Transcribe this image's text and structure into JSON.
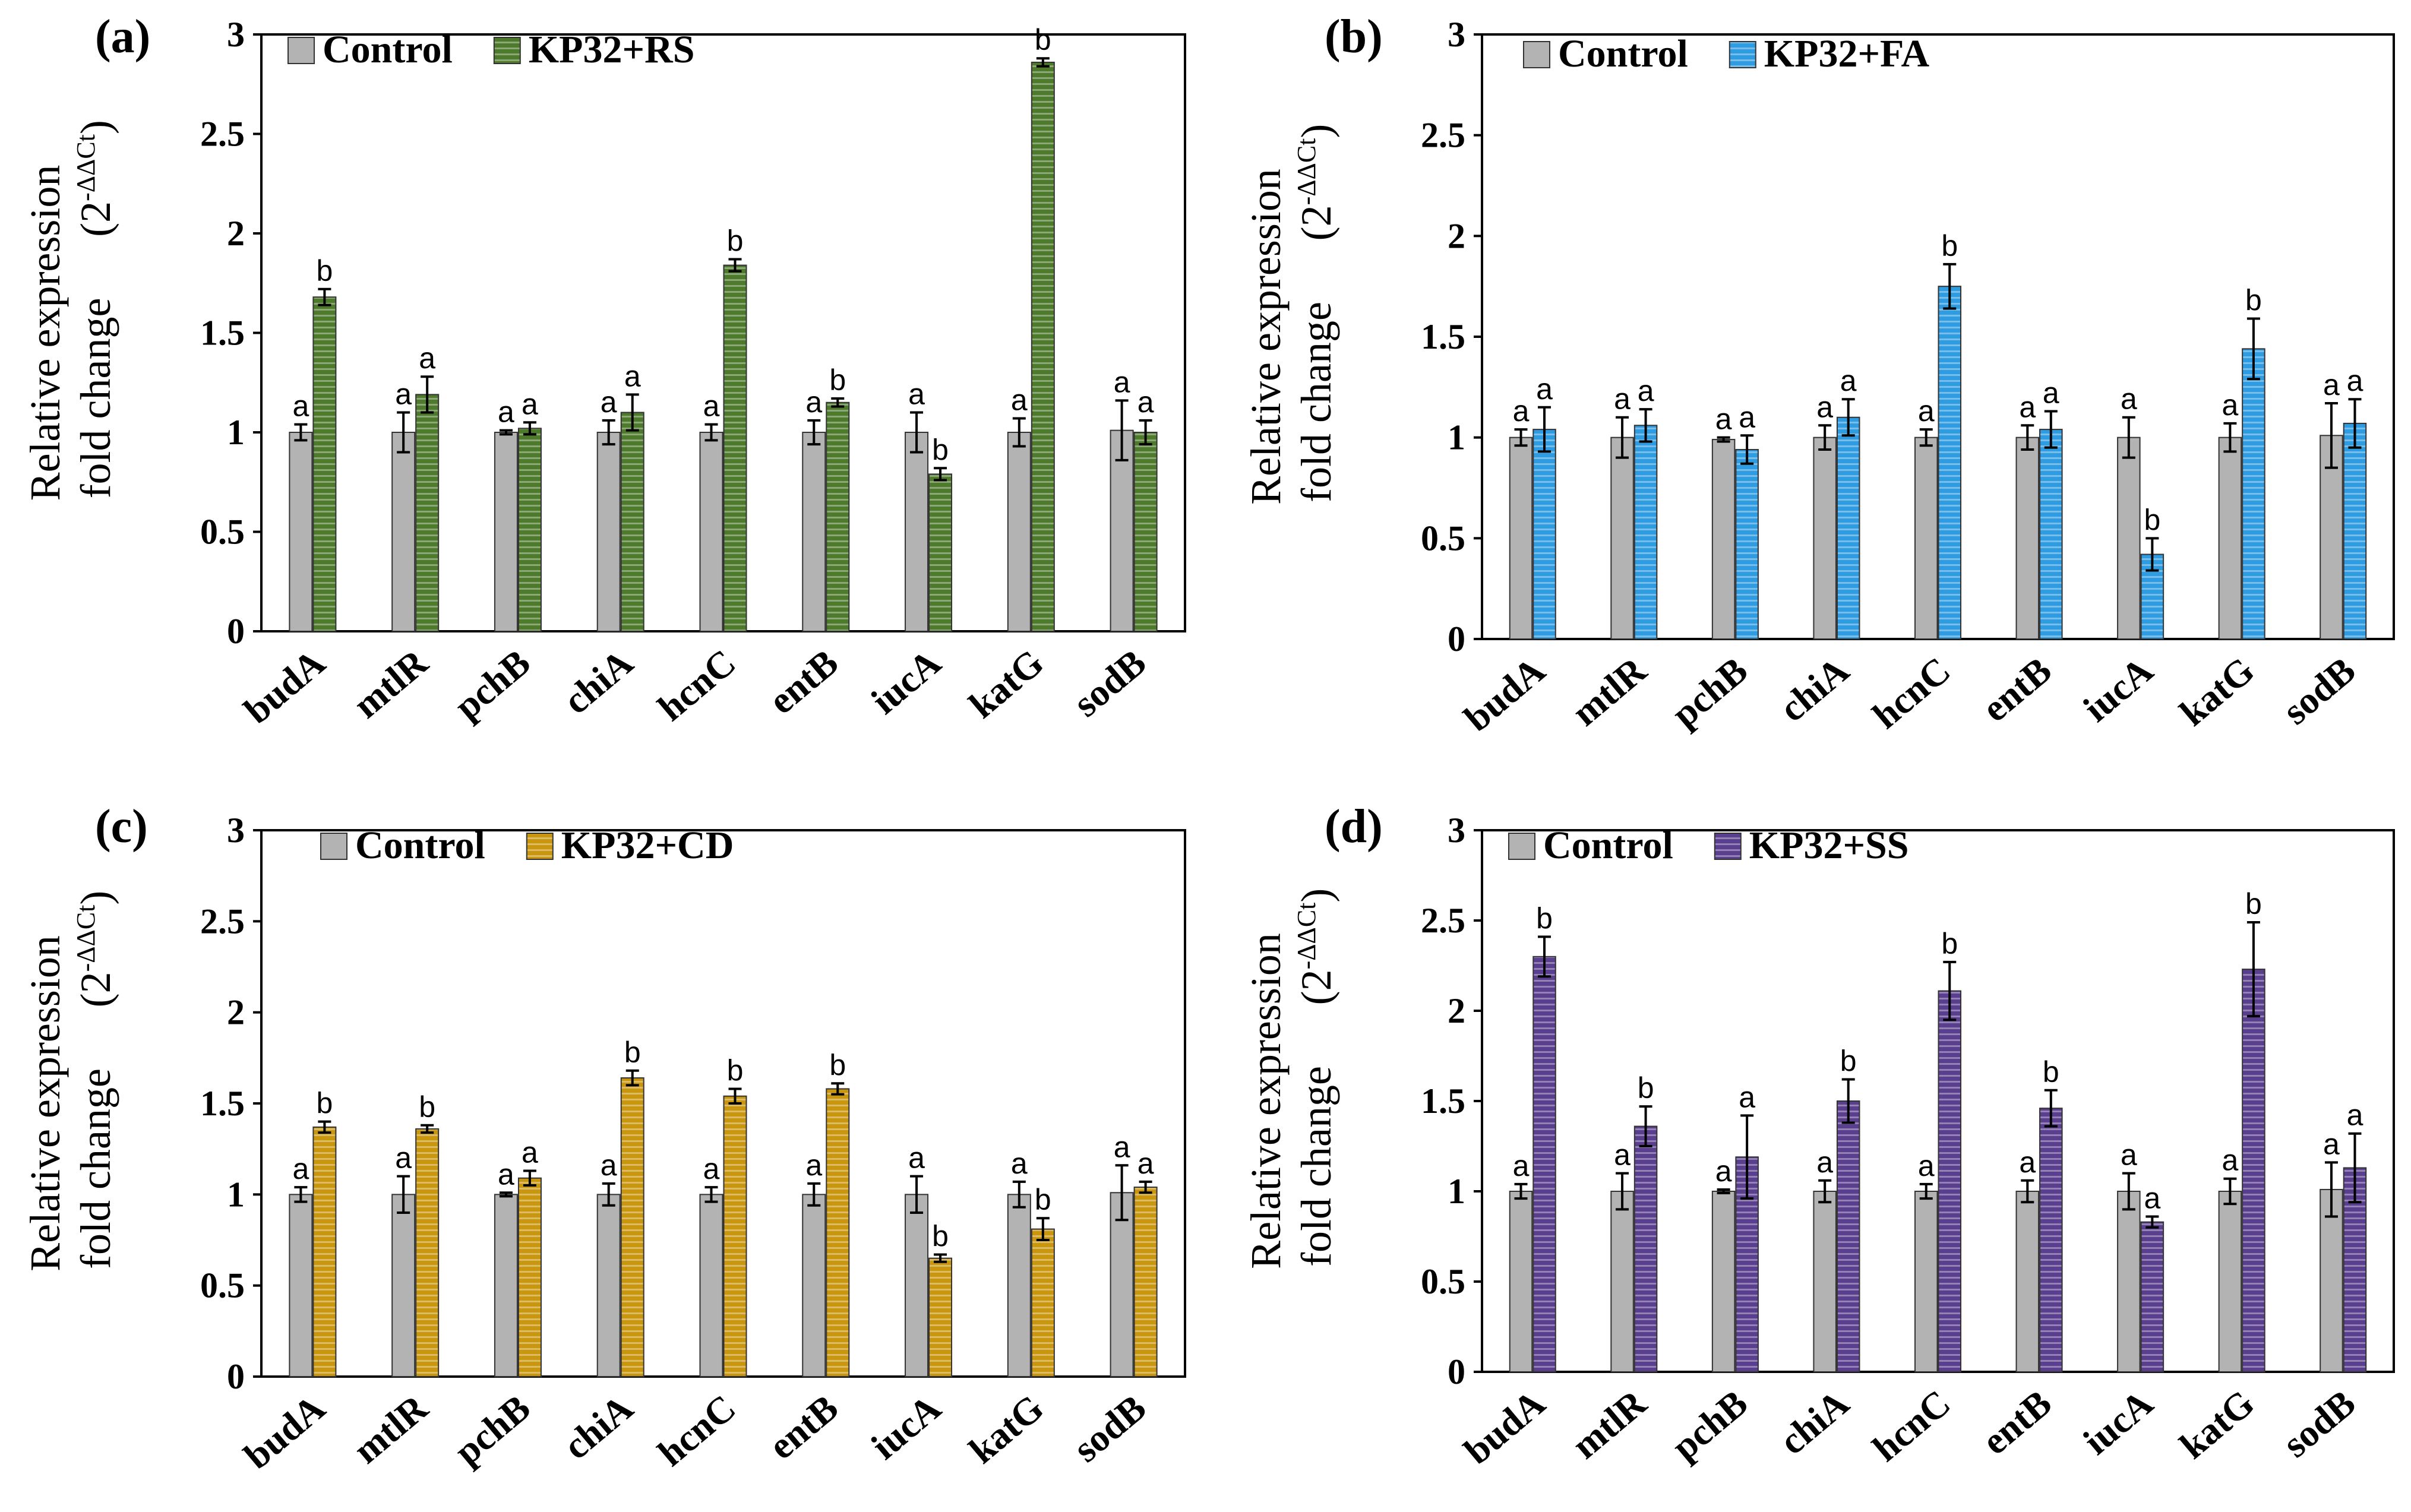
{
  "colors": {
    "control": "#b3b3b3",
    "rs": "#4e7a2c",
    "fa": "#2f9be0",
    "cd": "#c9960f",
    "ss": "#5a3f8f"
  },
  "chart_data": [
    {
      "type": "bar",
      "panel_label": "(a)",
      "categories": [
        "budA",
        "mtlR",
        "pchB",
        "chiA",
        "hcnC",
        "entB",
        "iucA",
        "katG",
        "sodB"
      ],
      "ylabel_line1": "Relative expression",
      "ylabel_line2": "fold change",
      "ylabel_unit_base": "(2",
      "ylabel_unit_sup": "-ΔΔCt",
      "ylabel_unit_close": ")",
      "ylim": [
        0,
        3
      ],
      "yticks": [
        "0",
        "0.5",
        "1",
        "1.5",
        "2",
        "2.5",
        "3"
      ],
      "legend_position": "top-left",
      "series": [
        {
          "name": "Control",
          "color_key": "control",
          "values": [
            1.0,
            1.0,
            1.0,
            1.0,
            1.0,
            1.0,
            1.0,
            1.0,
            1.01
          ],
          "errors": [
            0.04,
            0.1,
            0.01,
            0.06,
            0.04,
            0.06,
            0.1,
            0.07,
            0.15
          ],
          "labels": [
            "a",
            "a",
            "a",
            "a",
            "a",
            "a",
            "a",
            "a",
            "a"
          ]
        },
        {
          "name": "KP32+RS",
          "color_key": "rs",
          "values": [
            1.68,
            1.19,
            1.02,
            1.1,
            1.84,
            1.15,
            0.79,
            2.86,
            1.0
          ],
          "errors": [
            0.04,
            0.09,
            0.03,
            0.09,
            0.03,
            0.02,
            0.03,
            0.02,
            0.06
          ],
          "labels": [
            "b",
            "a",
            "a",
            "a",
            "b",
            "b",
            "b",
            "b",
            "a"
          ]
        }
      ]
    },
    {
      "type": "bar",
      "panel_label": "(b)",
      "categories": [
        "budA",
        "mtlR",
        "pchB",
        "chiA",
        "hcnC",
        "entB",
        "iucA",
        "katG",
        "sodB"
      ],
      "ylabel_line1": "Relative expression",
      "ylabel_line2": "fold change",
      "ylabel_unit_base": "(2",
      "ylabel_unit_sup": "-ΔΔCt",
      "ylabel_unit_close": ")",
      "ylim": [
        0,
        3
      ],
      "yticks": [
        "0",
        "0.5",
        "1",
        "1.5",
        "2",
        "2.5",
        "3"
      ],
      "legend_position": "top-left",
      "series": [
        {
          "name": "Control",
          "color_key": "control",
          "values": [
            1.0,
            1.0,
            0.99,
            1.0,
            1.0,
            1.0,
            1.0,
            1.0,
            1.01
          ],
          "errors": [
            0.04,
            0.1,
            0.01,
            0.06,
            0.04,
            0.06,
            0.1,
            0.07,
            0.16
          ],
          "labels": [
            "a",
            "a",
            "a",
            "a",
            "a",
            "a",
            "a",
            "a",
            "a"
          ]
        },
        {
          "name": "KP32+FA",
          "color_key": "fa",
          "values": [
            1.04,
            1.06,
            0.94,
            1.1,
            1.75,
            1.04,
            0.42,
            1.44,
            1.07
          ],
          "errors": [
            0.11,
            0.08,
            0.07,
            0.09,
            0.11,
            0.09,
            0.08,
            0.15,
            0.12
          ],
          "labels": [
            "a",
            "a",
            "a",
            "a",
            "b",
            "a",
            "b",
            "b",
            "a"
          ]
        }
      ]
    },
    {
      "type": "bar",
      "panel_label": "(c)",
      "categories": [
        "budA",
        "mtlR",
        "pchB",
        "chiA",
        "hcnC",
        "entB",
        "iucA",
        "katG",
        "sodB"
      ],
      "ylabel_line1": "Relative expression",
      "ylabel_line2": "fold change",
      "ylabel_unit_base": "(2",
      "ylabel_unit_sup": "-ΔΔCt",
      "ylabel_unit_close": ")",
      "ylim": [
        0,
        3
      ],
      "yticks": [
        "0",
        "0.5",
        "1",
        "1.5",
        "2",
        "2.5",
        "3"
      ],
      "legend_position": "top-left",
      "series": [
        {
          "name": "Control",
          "color_key": "control",
          "values": [
            1.0,
            1.0,
            1.0,
            1.0,
            1.0,
            1.0,
            1.0,
            1.0,
            1.01
          ],
          "errors": [
            0.04,
            0.1,
            0.01,
            0.06,
            0.04,
            0.06,
            0.1,
            0.07,
            0.15
          ],
          "labels": [
            "a",
            "a",
            "a",
            "a",
            "a",
            "a",
            "a",
            "a",
            "a"
          ]
        },
        {
          "name": "KP32+CD",
          "color_key": "cd",
          "values": [
            1.37,
            1.36,
            1.09,
            1.64,
            1.54,
            1.58,
            0.65,
            0.81,
            1.04
          ],
          "errors": [
            0.03,
            0.02,
            0.04,
            0.04,
            0.04,
            0.03,
            0.02,
            0.06,
            0.03
          ],
          "labels": [
            "b",
            "b",
            "a",
            "b",
            "b",
            "b",
            "b",
            "b",
            "a"
          ]
        }
      ]
    },
    {
      "type": "bar",
      "panel_label": "(d)",
      "categories": [
        "budA",
        "mtlR",
        "pchB",
        "chiA",
        "hcnC",
        "entB",
        "iucA",
        "katG",
        "sodB"
      ],
      "ylabel_line1": "Relative expression",
      "ylabel_line2": "fold change",
      "ylabel_unit_base": "(2",
      "ylabel_unit_sup": "-ΔΔCt",
      "ylabel_unit_close": ")",
      "ylim": [
        0,
        3
      ],
      "yticks": [
        "0",
        "0.5",
        "1",
        "1.5",
        "2",
        "2.5",
        "3"
      ],
      "legend_position": "top-left",
      "series": [
        {
          "name": "Control",
          "color_key": "control",
          "values": [
            1.0,
            1.0,
            1.0,
            1.0,
            1.0,
            1.0,
            1.0,
            1.0,
            1.01
          ],
          "errors": [
            0.04,
            0.1,
            0.01,
            0.06,
            0.04,
            0.06,
            0.1,
            0.07,
            0.15
          ],
          "labels": [
            "a",
            "a",
            "a",
            "a",
            "a",
            "a",
            "a",
            "a",
            "a"
          ]
        },
        {
          "name": "KP32+SS",
          "color_key": "ss",
          "values": [
            2.3,
            1.36,
            1.19,
            1.5,
            2.11,
            1.46,
            0.83,
            2.23,
            1.13
          ],
          "errors": [
            0.11,
            0.11,
            0.23,
            0.12,
            0.16,
            0.1,
            0.03,
            0.26,
            0.19
          ],
          "labels": [
            "b",
            "b",
            "a",
            "b",
            "b",
            "b",
            "a",
            "b",
            "a"
          ]
        }
      ]
    }
  ]
}
